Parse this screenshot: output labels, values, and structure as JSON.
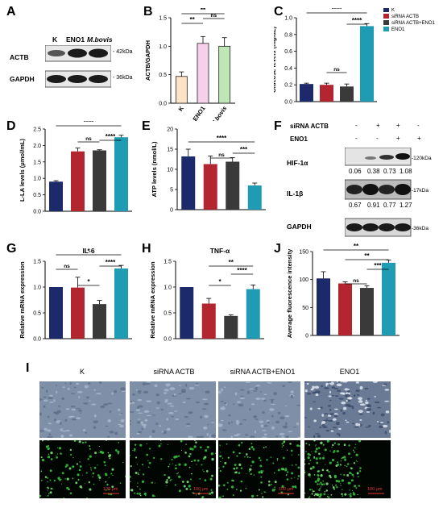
{
  "panels": {
    "A": {
      "letter": "A",
      "lanes": [
        "K",
        "ENO1",
        "M.bovis"
      ],
      "rows": [
        "ACTB",
        "GAPDH"
      ],
      "sizes": [
        "42kDa",
        "36kDa"
      ]
    },
    "B": {
      "letter": "B"
    },
    "C": {
      "letter": "C"
    },
    "D": {
      "letter": "D"
    },
    "E": {
      "letter": "E"
    },
    "F": {
      "letter": "F",
      "header": [
        "siRNA ACTB",
        "ENO1"
      ],
      "signs": [
        [
          "-",
          "+",
          "+",
          "-"
        ],
        [
          "-",
          "-",
          "+",
          "+"
        ]
      ],
      "rows": [
        "HIF-1α",
        "IL-1β",
        "GAPDH"
      ],
      "sizes": [
        "120kDa",
        "17kDa",
        "36kDa"
      ],
      "hif_values": [
        "0.06",
        "0.38",
        "0.73",
        "1.08"
      ],
      "il1b_values": [
        "0.67",
        "0.91",
        "0.77",
        "1.27"
      ]
    },
    "G": {
      "letter": "G"
    },
    "H": {
      "letter": "H"
    },
    "I": {
      "letter": "I",
      "columns": [
        "K",
        "siRNA ACTB",
        "siRNA ACTB+ENO1",
        "ENO1"
      ],
      "scale": [
        "100 μm",
        "100 μm",
        "100 μm",
        "100 μm"
      ]
    },
    "J": {
      "letter": "J"
    }
  },
  "colors": {
    "navy": "#1c2a6b",
    "red": "#b3262f",
    "dark": "#3a3a3a",
    "teal": "#1f9bb3",
    "peach": "#fde3c5",
    "pink": "#f5d0e8",
    "green": "#bfe6b5"
  },
  "chart_data": [
    {
      "id": "B",
      "type": "bar",
      "title": "",
      "ylabel": "ACTB/GAPDH",
      "categories": [
        "K",
        "ENO1",
        "M.bovis"
      ],
      "values": [
        0.47,
        1.05,
        1.0
      ],
      "errors": [
        0.08,
        0.12,
        0.15
      ],
      "ylim": [
        0,
        1.5
      ],
      "yticks": [
        "0.0",
        "0.5",
        "1.0",
        "1.5"
      ],
      "annotations": [
        "**",
        "**",
        "ns"
      ]
    },
    {
      "id": "C",
      "type": "bar",
      "title": "",
      "ylabel": "Glucose levels (mg/dL)",
      "categories": [
        "K",
        "siRNA ACTB",
        "siRNA ACTB+ENO1",
        "ENO1"
      ],
      "legend": [
        "K",
        "siRNA ACTB",
        "siRNA ACTB+ENO1",
        "ENO1"
      ],
      "values": [
        0.21,
        0.2,
        0.18,
        0.9
      ],
      "errors": [
        0.01,
        0.02,
        0.03,
        0.03
      ],
      "ylim": [
        0,
        1.0
      ],
      "yticks": [
        "0.0",
        "0.2",
        "0.4",
        "0.6",
        "0.8",
        "1.0"
      ],
      "annotations": [
        "****",
        "ns",
        "****"
      ]
    },
    {
      "id": "D",
      "type": "bar",
      "title": "",
      "ylabel": "L-LA levels (μmol/mL)",
      "values": [
        0.9,
        1.82,
        1.85,
        2.25
      ],
      "errors": [
        0.03,
        0.1,
        0.02,
        0.06
      ],
      "ylim": [
        0,
        2.5
      ],
      "yticks": [
        "0.0",
        "0.5",
        "1.0",
        "1.5",
        "2.0",
        "2.5"
      ],
      "annotations": [
        "****",
        "ns",
        "****"
      ]
    },
    {
      "id": "E",
      "type": "bar",
      "title": "",
      "ylabel": "ATP levels (nmol/L)",
      "values": [
        13.2,
        11.3,
        11.9,
        6.0
      ],
      "errors": [
        1.8,
        2.0,
        1.0,
        0.6
      ],
      "ylim": [
        0,
        20
      ],
      "yticks": [
        "0",
        "5",
        "10",
        "15",
        "20"
      ],
      "annotations": [
        "****",
        "ns",
        "***"
      ]
    },
    {
      "id": "G",
      "type": "bar",
      "title": "IL-6",
      "ylabel": "Relative mRNA expression",
      "values": [
        1.0,
        0.99,
        0.67,
        1.36
      ],
      "errors": [
        0.0,
        0.2,
        0.07,
        0.06
      ],
      "ylim": [
        0,
        1.5
      ],
      "yticks": [
        "0.0",
        "0.5",
        "1.0",
        "1.5"
      ],
      "annotations": [
        "*",
        "ns",
        "*",
        "****"
      ]
    },
    {
      "id": "H",
      "type": "bar",
      "title": "TNF-α",
      "ylabel": "Relative mRNA expression",
      "values": [
        1.0,
        0.68,
        0.44,
        0.96
      ],
      "errors": [
        0.0,
        0.1,
        0.02,
        0.08
      ],
      "ylim": [
        0,
        1.5
      ],
      "yticks": [
        "0.0",
        "0.5",
        "1.0",
        "1.5"
      ],
      "annotations": [
        "**",
        "*",
        "****"
      ]
    },
    {
      "id": "J",
      "type": "bar",
      "title": "",
      "ylabel": "Average fluorescence intensity",
      "values": [
        102,
        93,
        85,
        130
      ],
      "errors": [
        12,
        3,
        4,
        5
      ],
      "ylim": [
        0,
        150
      ],
      "yticks": [
        "0",
        "50",
        "100",
        "150"
      ],
      "annotations": [
        "**",
        "**",
        "ns",
        "***"
      ]
    }
  ]
}
